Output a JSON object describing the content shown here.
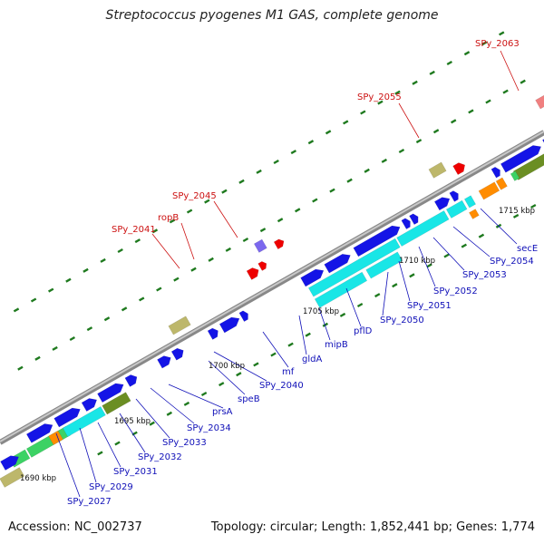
{
  "title": "Streptococcus pyogenes M1 GAS, complete genome",
  "footer": {
    "accession": "Accession: NC_002737",
    "stats": "Topology: circular; Length: 1,852,441 bp; Genes: 1,774"
  },
  "colors": {
    "backbone": "#a9a9a9",
    "gene_forward": "#1414e6",
    "cyan": "#19e6e6",
    "light_green": "#3cd264",
    "olive": "#6b8e23",
    "orange": "#ff8c00",
    "khaki": "#bdb76b",
    "red": "#ee0000",
    "pink": "#f08080",
    "purple": "#7b68ee",
    "tick": "#1f7a1f",
    "label_blue": "#1010b8",
    "label_red": "#cc1111"
  },
  "scale_labels": [
    "1690 kbp",
    "1695 kbp",
    "1700 kbp",
    "1705 kbp",
    "1710 kbp",
    "1715 kbp"
  ],
  "blue_labels": [
    "SPy_2027",
    "SPy_2029",
    "SPy_2031",
    "SPy_2032",
    "SPy_2033",
    "SPy_2034",
    "prsA",
    "speB",
    "SPy_2040",
    "mf",
    "gldA",
    "mipB",
    "pflD",
    "SPy_2050",
    "SPy_2051",
    "SPy_2052",
    "SPy_2053",
    "SPy_2054",
    "secE"
  ],
  "red_labels": [
    "SPy_2041",
    "ropB",
    "SPy_2045",
    "SPy_2055",
    "SPy_2063"
  ]
}
